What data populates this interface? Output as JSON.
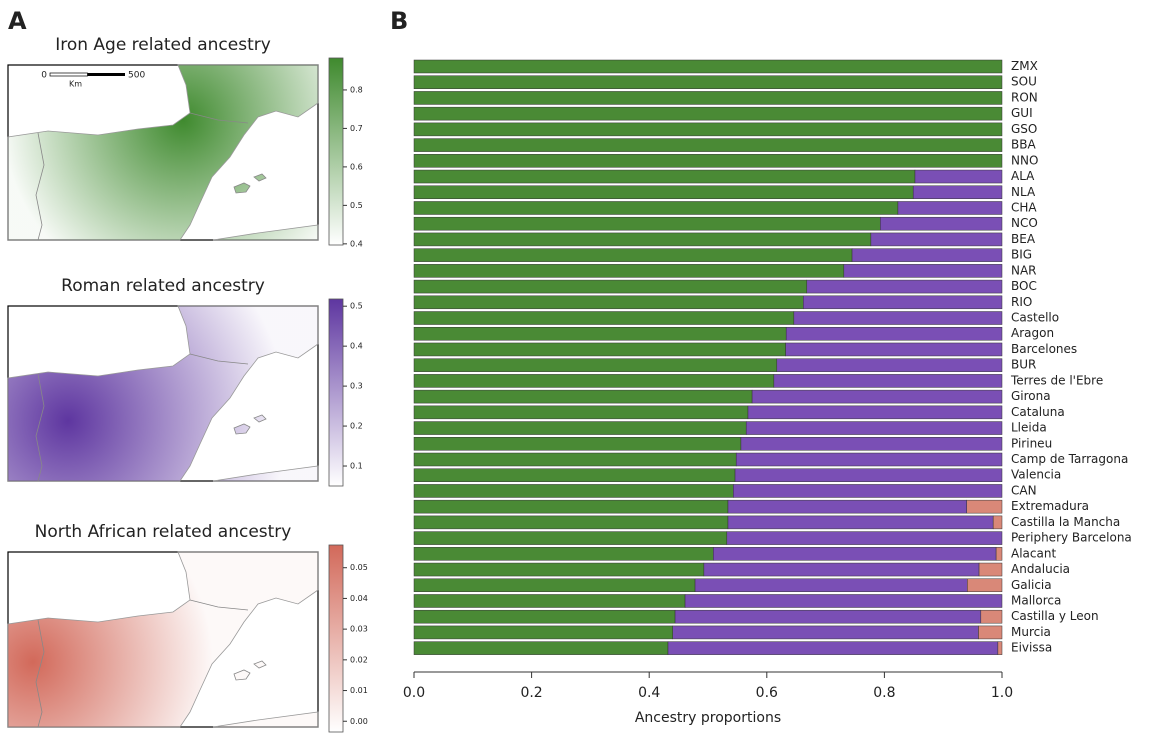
{
  "chart_data": [
    {
      "type": "map",
      "panel": "A",
      "title": "Iron Age related ancestry",
      "color": "#3f8a2e",
      "ylim": [
        0.397,
        0.883
      ],
      "yticks": [
        0.4,
        0.5,
        0.6,
        0.7,
        0.8
      ],
      "scalebar": {
        "ticks": [
          0,
          500
        ],
        "unit": "Km"
      }
    },
    {
      "type": "map",
      "title": "Roman related ancestry",
      "color": "#5e36a0",
      "ylim": [
        0.05,
        0.518
      ],
      "yticks": [
        0.1,
        0.2,
        0.3,
        0.4,
        0.5
      ]
    },
    {
      "type": "map",
      "title": "North African related ancestry",
      "color": "#d2695a",
      "ylim": [
        -0.0035,
        0.0574
      ],
      "yticks": [
        {
          "value": 0,
          "label": "0.00"
        },
        {
          "value": 0.01,
          "label": "0.01"
        },
        {
          "value": 0.02,
          "label": "0.02"
        },
        {
          "value": 0.03,
          "label": "0.03"
        },
        {
          "value": 0.04,
          "label": "0.04"
        },
        {
          "value": 0.05,
          "label": "0.05"
        }
      ]
    },
    {
      "type": "stacked-hbar",
      "panel": "B",
      "xlabel": "Ancestry proportions",
      "xlim": [
        0,
        1
      ],
      "xticks": [
        {
          "value": 0,
          "label": "0.0"
        },
        0.2,
        0.4,
        0.6,
        0.8,
        {
          "value": 1,
          "label": "1.0"
        }
      ],
      "categories": [
        "ZMX",
        "SOU",
        "RON",
        "GUI",
        "GSO",
        "BBA",
        "NNO",
        "ALA",
        "NLA",
        "CHA",
        "NCO",
        "BEA",
        "BIG",
        "NAR",
        "BOC",
        "RIO",
        "Castello",
        "Aragon",
        "Barcelones",
        "BUR",
        "Terres de l'Ebre",
        "Girona",
        "Cataluna",
        "Lleida",
        "Pirineu",
        "Camp de Tarragona",
        "Valencia",
        "CAN",
        "Extremadura",
        "Castilla la Mancha",
        "Periphery Barcelona",
        "Alacant",
        "Andalucia",
        "Galicia",
        "Mallorca",
        "Castilla y Leon",
        "Murcia",
        "Eivissa"
      ],
      "series": [
        {
          "color": "#4a8a35",
          "values": [
            1,
            1,
            1,
            1,
            1,
            1,
            1,
            0.852,
            0.849,
            0.823,
            0.793,
            0.777,
            0.745,
            0.731,
            0.668,
            0.662,
            0.646,
            0.633,
            0.632,
            0.617,
            0.612,
            0.575,
            0.568,
            0.565,
            0.556,
            0.548,
            0.546,
            0.543,
            0.534,
            0.534,
            0.532,
            0.509,
            0.493,
            0.478,
            0.461,
            0.444,
            0.44,
            0.432
          ]
        },
        {
          "color": "#7a4fb5",
          "values": [
            0,
            0,
            0,
            0,
            0,
            0,
            0,
            0.148,
            0.151,
            0.177,
            0.207,
            0.223,
            0.255,
            0.269,
            0.332,
            0.338,
            0.354,
            0.367,
            0.368,
            0.383,
            0.388,
            0.425,
            0.432,
            0.435,
            0.444,
            0.452,
            0.454,
            0.457,
            0.406,
            0.451,
            0.468,
            0.481,
            0.468,
            0.463,
            0.539,
            0.52,
            0.52,
            0.561
          ]
        },
        {
          "color": "#d98878",
          "values": [
            0,
            0,
            0,
            0,
            0,
            0,
            0,
            0,
            0,
            0,
            0,
            0,
            0,
            0,
            0,
            0,
            0,
            0,
            0,
            0,
            0,
            0,
            0,
            0,
            0,
            0,
            0,
            0,
            0.06,
            0.015,
            0,
            0.01,
            0.039,
            0.059,
            0,
            0.036,
            0.04,
            0.007
          ]
        }
      ]
    }
  ]
}
